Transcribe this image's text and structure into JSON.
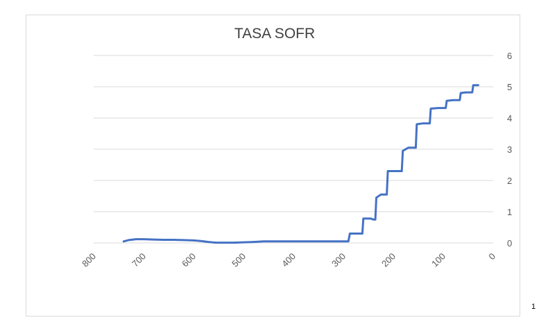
{
  "page": {
    "number": "1"
  },
  "colors": {
    "series": "#4472c4",
    "grid": "#d9d9d9",
    "text": "#595959",
    "title": "#404040"
  },
  "chart_data": {
    "type": "line",
    "title": "TASA SOFR",
    "xlabel": "",
    "ylabel": "",
    "x_reversed": true,
    "xlim": [
      800,
      0
    ],
    "ylim": [
      0,
      6
    ],
    "x_ticks": [
      800,
      700,
      600,
      500,
      400,
      300,
      200,
      100,
      0
    ],
    "y_ticks": [
      0,
      1,
      2,
      3,
      4,
      5,
      6
    ],
    "y_axis_position": "right",
    "grid": {
      "horizontal": true,
      "vertical": false
    },
    "legend": "none",
    "series": [
      {
        "values": [
          [
            740,
            0.05
          ],
          [
            730,
            0.09
          ],
          [
            715,
            0.12
          ],
          [
            700,
            0.12
          ],
          [
            680,
            0.11
          ],
          [
            660,
            0.1
          ],
          [
            640,
            0.1
          ],
          [
            620,
            0.09
          ],
          [
            600,
            0.08
          ],
          [
            585,
            0.06
          ],
          [
            570,
            0.03
          ],
          [
            555,
            0.01
          ],
          [
            540,
            0.01
          ],
          [
            520,
            0.01
          ],
          [
            500,
            0.02
          ],
          [
            480,
            0.03
          ],
          [
            460,
            0.05
          ],
          [
            440,
            0.05
          ],
          [
            420,
            0.05
          ],
          [
            400,
            0.05
          ],
          [
            380,
            0.05
          ],
          [
            360,
            0.05
          ],
          [
            340,
            0.05
          ],
          [
            320,
            0.05
          ],
          [
            300,
            0.05
          ],
          [
            290,
            0.05
          ],
          [
            287,
            0.3
          ],
          [
            270,
            0.3
          ],
          [
            262,
            0.3
          ],
          [
            260,
            0.78
          ],
          [
            245,
            0.78
          ],
          [
            240,
            0.75
          ],
          [
            236,
            0.75
          ],
          [
            234,
            1.45
          ],
          [
            225,
            1.55
          ],
          [
            213,
            1.55
          ],
          [
            211,
            2.3
          ],
          [
            195,
            2.3
          ],
          [
            183,
            2.3
          ],
          [
            181,
            2.95
          ],
          [
            170,
            3.05
          ],
          [
            155,
            3.05
          ],
          [
            153,
            3.8
          ],
          [
            140,
            3.83
          ],
          [
            127,
            3.83
          ],
          [
            125,
            4.3
          ],
          [
            110,
            4.32
          ],
          [
            95,
            4.32
          ],
          [
            93,
            4.55
          ],
          [
            80,
            4.57
          ],
          [
            67,
            4.57
          ],
          [
            65,
            4.8
          ],
          [
            55,
            4.82
          ],
          [
            42,
            4.82
          ],
          [
            40,
            5.05
          ],
          [
            30,
            5.05
          ]
        ]
      }
    ]
  }
}
